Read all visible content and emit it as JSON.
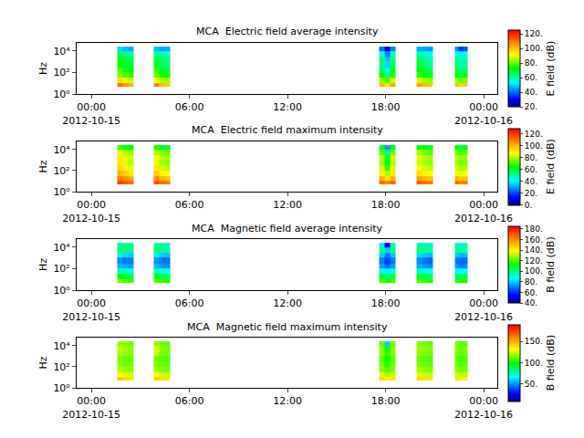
{
  "chart_data": [
    {
      "type": "heatmap",
      "title": "MCA  Electric field average intensity",
      "ylabel": "Hz",
      "colorbar_label": "E field (dB)",
      "log": "y",
      "xlim": [
        "2012-10-14 23:06",
        "2012-10-16 00:50"
      ],
      "xticks": [
        {
          "value": "2012-10-15 00:00",
          "label": "00:00\n2012-10-15"
        },
        {
          "value": "2012-10-15 06:00",
          "label": "06:00"
        },
        {
          "value": "2012-10-15 12:00",
          "label": "12:00"
        },
        {
          "value": "2012-10-15 18:00",
          "label": "18:00"
        },
        {
          "value": "2012-10-16 00:00",
          "label": "00:00\n2012-10-16"
        }
      ],
      "ylim": [
        1,
        56234
      ],
      "yticks": [
        {
          "value": 1,
          "label": "10⁰"
        },
        {
          "value": 100,
          "label": "10²"
        },
        {
          "value": 10000,
          "label": "10⁴"
        }
      ],
      "colorbar_range": [
        20,
        125
      ],
      "colorbar_ticks": [
        {
          "value": 20,
          "label": "20."
        },
        {
          "value": 40,
          "label": "40."
        },
        {
          "value": 60,
          "label": "60."
        },
        {
          "value": 80,
          "label": "80."
        },
        {
          "value": 100,
          "label": "100."
        },
        {
          "value": 120,
          "label": "120."
        }
      ],
      "x_edges": [
        "2012-10-15 01:35",
        "2012-10-15 01:55",
        "2012-10-15 02:15",
        "2012-10-15 02:35",
        "2012-10-15 03:48",
        "2012-10-15 04:08",
        "2012-10-15 04:28",
        "2012-10-15 04:48",
        "2012-10-15 17:36",
        "2012-10-15 17:56",
        "2012-10-15 18:16",
        "2012-10-15 18:36",
        "2012-10-15 19:53",
        "2012-10-15 20:13",
        "2012-10-15 20:33",
        "2012-10-15 20:53",
        "2012-10-15 22:13",
        "2012-10-15 22:29",
        "2012-10-15 22:45",
        "2012-10-15 23:01"
      ],
      "y_edges": [
        5,
        10,
        30,
        100,
        300,
        1000,
        3000,
        10000,
        25000
      ],
      "cells": [
        [
          110,
          105,
          100,
          null,
          108,
          100,
          98,
          null,
          100,
          95,
          102,
          null,
          104,
          100,
          98,
          null,
          100,
          96,
          98
        ],
        [
          95,
          90,
          88,
          null,
          92,
          85,
          84,
          null,
          85,
          78,
          88,
          null,
          88,
          84,
          82,
          null,
          84,
          80,
          82
        ],
        [
          82,
          78,
          76,
          null,
          80,
          74,
          72,
          null,
          72,
          62,
          75,
          null,
          75,
          72,
          70,
          null,
          72,
          68,
          70
        ],
        [
          78,
          74,
          72,
          null,
          76,
          70,
          68,
          null,
          66,
          55,
          70,
          null,
          72,
          68,
          66,
          null,
          68,
          64,
          66
        ],
        [
          72,
          70,
          68,
          null,
          70,
          66,
          64,
          null,
          62,
          50,
          66,
          null,
          68,
          64,
          62,
          null,
          64,
          60,
          62
        ],
        [
          72,
          68,
          66,
          null,
          68,
          65,
          62,
          null,
          64,
          48,
          64,
          null,
          66,
          62,
          60,
          null,
          62,
          58,
          60
        ],
        [
          66,
          64,
          60,
          null,
          62,
          60,
          58,
          null,
          55,
          42,
          58,
          null,
          60,
          56,
          55,
          null,
          56,
          52,
          54
        ],
        [
          50,
          48,
          46,
          null,
          48,
          46,
          45,
          null,
          40,
          28,
          42,
          null,
          46,
          45,
          44,
          null,
          44,
          35,
          38
        ]
      ]
    },
    {
      "type": "heatmap",
      "title": "MCA  Electric field maximum intensity",
      "ylabel": "Hz",
      "colorbar_label": "E field (dB)",
      "log": "y",
      "xlim": [
        "2012-10-14 23:06",
        "2012-10-16 00:50"
      ],
      "xticks": [
        {
          "value": "2012-10-15 00:00",
          "label": "00:00\n2012-10-15"
        },
        {
          "value": "2012-10-15 06:00",
          "label": "06:00"
        },
        {
          "value": "2012-10-15 12:00",
          "label": "12:00"
        },
        {
          "value": "2012-10-15 18:00",
          "label": "18:00"
        },
        {
          "value": "2012-10-16 00:00",
          "label": "00:00\n2012-10-16"
        }
      ],
      "ylim": [
        1,
        56234
      ],
      "yticks": [
        {
          "value": 1,
          "label": "10⁰"
        },
        {
          "value": 100,
          "label": "10²"
        },
        {
          "value": 10000,
          "label": "10⁴"
        }
      ],
      "colorbar_range": [
        0,
        130
      ],
      "colorbar_ticks": [
        {
          "value": 0,
          "label": "0."
        },
        {
          "value": 20,
          "label": "20."
        },
        {
          "value": 40,
          "label": "40."
        },
        {
          "value": 60,
          "label": "60."
        },
        {
          "value": 80,
          "label": "80."
        },
        {
          "value": 100,
          "label": "100."
        },
        {
          "value": 120,
          "label": "120."
        }
      ],
      "x_edges": [
        "2012-10-15 01:35",
        "2012-10-15 01:55",
        "2012-10-15 02:15",
        "2012-10-15 02:35",
        "2012-10-15 03:48",
        "2012-10-15 04:08",
        "2012-10-15 04:28",
        "2012-10-15 04:48",
        "2012-10-15 17:36",
        "2012-10-15 17:56",
        "2012-10-15 18:16",
        "2012-10-15 18:36",
        "2012-10-15 19:53",
        "2012-10-15 20:13",
        "2012-10-15 20:33",
        "2012-10-15 20:53",
        "2012-10-15 22:13",
        "2012-10-15 22:29",
        "2012-10-15 22:45",
        "2012-10-15 23:01"
      ],
      "y_edges": [
        5,
        10,
        30,
        100,
        300,
        1000,
        3000,
        10000,
        25000
      ],
      "cells": [
        [
          120,
          115,
          112,
          null,
          118,
          112,
          110,
          null,
          112,
          108,
          114,
          null,
          116,
          112,
          110,
          null,
          112,
          108,
          110
        ],
        [
          110,
          106,
          102,
          null,
          108,
          100,
          98,
          null,
          100,
          92,
          102,
          null,
          104,
          100,
          98,
          null,
          100,
          96,
          98
        ],
        [
          100,
          96,
          92,
          null,
          98,
          90,
          88,
          null,
          90,
          80,
          92,
          null,
          94,
          90,
          88,
          null,
          90,
          86,
          88
        ],
        [
          95,
          90,
          86,
          null,
          92,
          84,
          82,
          null,
          84,
          70,
          86,
          null,
          88,
          84,
          82,
          null,
          84,
          80,
          82
        ],
        [
          92,
          86,
          82,
          null,
          88,
          80,
          78,
          null,
          80,
          62,
          82,
          null,
          84,
          80,
          78,
          null,
          80,
          76,
          78
        ],
        [
          92,
          86,
          84,
          null,
          88,
          82,
          80,
          null,
          82,
          60,
          84,
          null,
          86,
          82,
          80,
          null,
          82,
          78,
          80
        ],
        [
          86,
          82,
          78,
          null,
          82,
          76,
          74,
          null,
          74,
          52,
          76,
          null,
          80,
          76,
          74,
          null,
          76,
          72,
          74
        ],
        [
          70,
          66,
          64,
          null,
          68,
          64,
          62,
          null,
          60,
          30,
          62,
          null,
          66,
          64,
          62,
          null,
          64,
          60,
          62
        ]
      ]
    },
    {
      "type": "heatmap",
      "title": "MCA  Magnetic field average intensity",
      "ylabel": "Hz",
      "colorbar_label": "B field (dB)",
      "log": "y",
      "xlim": [
        "2012-10-14 23:06",
        "2012-10-16 00:50"
      ],
      "xticks": [
        {
          "value": "2012-10-15 00:00",
          "label": "00:00\n2012-10-15"
        },
        {
          "value": "2012-10-15 06:00",
          "label": "06:00"
        },
        {
          "value": "2012-10-15 12:00",
          "label": "12:00"
        },
        {
          "value": "2012-10-15 18:00",
          "label": "18:00"
        },
        {
          "value": "2012-10-16 00:00",
          "label": "00:00\n2012-10-16"
        }
      ],
      "ylim": [
        1,
        56234
      ],
      "yticks": [
        {
          "value": 1,
          "label": "10⁰"
        },
        {
          "value": 100,
          "label": "10²"
        },
        {
          "value": 10000,
          "label": "10⁴"
        }
      ],
      "colorbar_range": [
        40,
        185
      ],
      "colorbar_ticks": [
        {
          "value": 40,
          "label": "40."
        },
        {
          "value": 60,
          "label": "60."
        },
        {
          "value": 80,
          "label": "80."
        },
        {
          "value": 100,
          "label": "100."
        },
        {
          "value": 120,
          "label": "120."
        },
        {
          "value": 140,
          "label": "140."
        },
        {
          "value": 160,
          "label": "160."
        },
        {
          "value": 180,
          "label": "180."
        }
      ],
      "x_edges": [
        "2012-10-15 01:35",
        "2012-10-15 01:55",
        "2012-10-15 02:15",
        "2012-10-15 02:35",
        "2012-10-15 03:48",
        "2012-10-15 04:08",
        "2012-10-15 04:28",
        "2012-10-15 04:48",
        "2012-10-15 17:36",
        "2012-10-15 17:56",
        "2012-10-15 18:16",
        "2012-10-15 18:36",
        "2012-10-15 19:53",
        "2012-10-15 20:13",
        "2012-10-15 20:33",
        "2012-10-15 20:53",
        "2012-10-15 22:13",
        "2012-10-15 22:29",
        "2012-10-15 22:45",
        "2012-10-15 23:01"
      ],
      "y_edges": [
        5,
        10,
        30,
        100,
        300,
        1000,
        3000,
        10000,
        25000
      ],
      "cells": [
        [
          125,
          120,
          118,
          null,
          122,
          118,
          116,
          null,
          120,
          115,
          118,
          null,
          120,
          118,
          116,
          null,
          118,
          115,
          116
        ],
        [
          112,
          108,
          106,
          null,
          110,
          106,
          104,
          null,
          108,
          100,
          106,
          null,
          108,
          106,
          104,
          null,
          106,
          102,
          104
        ],
        [
          95,
          92,
          90,
          null,
          94,
          90,
          88,
          null,
          92,
          85,
          90,
          null,
          92,
          90,
          88,
          null,
          90,
          86,
          88
        ],
        [
          78,
          76,
          74,
          null,
          78,
          74,
          72,
          null,
          75,
          68,
          74,
          null,
          76,
          74,
          72,
          null,
          74,
          70,
          72
        ],
        [
          72,
          70,
          70,
          null,
          72,
          70,
          68,
          null,
          70,
          62,
          70,
          null,
          72,
          70,
          68,
          null,
          70,
          68,
          68
        ],
        [
          85,
          82,
          80,
          null,
          84,
          80,
          78,
          null,
          80,
          70,
          80,
          null,
          82,
          80,
          78,
          null,
          80,
          76,
          78
        ],
        [
          102,
          100,
          98,
          null,
          102,
          98,
          96,
          null,
          98,
          80,
          98,
          null,
          100,
          98,
          96,
          null,
          98,
          95,
          96
        ],
        [
          98,
          96,
          95,
          null,
          98,
          95,
          94,
          null,
          92,
          55,
          94,
          null,
          96,
          95,
          94,
          null,
          95,
          92,
          94
        ]
      ]
    },
    {
      "type": "heatmap",
      "title": "MCA  Magnetic field maximum intensity",
      "ylabel": "Hz",
      "colorbar_label": "B field (dB)",
      "log": "y",
      "xlim": [
        "2012-10-14 23:06",
        "2012-10-16 00:50"
      ],
      "xticks": [
        {
          "value": "2012-10-15 00:00",
          "label": "00:00\n2012-10-15"
        },
        {
          "value": "2012-10-15 06:00",
          "label": "06:00"
        },
        {
          "value": "2012-10-15 12:00",
          "label": "12:00"
        },
        {
          "value": "2012-10-15 18:00",
          "label": "18:00"
        },
        {
          "value": "2012-10-16 00:00",
          "label": "00:00\n2012-10-16"
        }
      ],
      "ylim": [
        1,
        56234
      ],
      "yticks": [
        {
          "value": 1,
          "label": "10⁰"
        },
        {
          "value": 100,
          "label": "10²"
        },
        {
          "value": 10000,
          "label": "10⁴"
        }
      ],
      "colorbar_range": [
        10,
        190
      ],
      "colorbar_ticks": [
        {
          "value": 50,
          "label": "50."
        },
        {
          "value": 100,
          "label": "100."
        },
        {
          "value": 150,
          "label": "150."
        }
      ],
      "x_edges": [
        "2012-10-15 01:35",
        "2012-10-15 01:55",
        "2012-10-15 02:15",
        "2012-10-15 02:35",
        "2012-10-15 03:48",
        "2012-10-15 04:08",
        "2012-10-15 04:28",
        "2012-10-15 04:48",
        "2012-10-15 17:36",
        "2012-10-15 17:56",
        "2012-10-15 18:16",
        "2012-10-15 18:36",
        "2012-10-15 19:53",
        "2012-10-15 20:13",
        "2012-10-15 20:33",
        "2012-10-15 20:53",
        "2012-10-15 22:13",
        "2012-10-15 22:29",
        "2012-10-15 22:45",
        "2012-10-15 23:01"
      ],
      "y_edges": [
        5,
        10,
        30,
        100,
        300,
        1000,
        3000,
        10000,
        25000
      ],
      "cells": [
        [
          145,
          140,
          138,
          null,
          142,
          138,
          136,
          null,
          140,
          135,
          138,
          null,
          140,
          138,
          136,
          null,
          138,
          135,
          136
        ],
        [
          132,
          128,
          126,
          null,
          130,
          126,
          124,
          null,
          128,
          120,
          126,
          null,
          128,
          126,
          124,
          null,
          126,
          122,
          124
        ],
        [
          122,
          120,
          118,
          null,
          120,
          118,
          116,
          null,
          118,
          110,
          118,
          null,
          120,
          118,
          116,
          null,
          118,
          115,
          116
        ],
        [
          118,
          115,
          114,
          null,
          116,
          114,
          112,
          null,
          114,
          105,
          114,
          null,
          116,
          114,
          112,
          null,
          114,
          110,
          112
        ],
        [
          116,
          114,
          112,
          null,
          114,
          112,
          110,
          null,
          112,
          100,
          112,
          null,
          114,
          112,
          110,
          null,
          112,
          108,
          110
        ],
        [
          122,
          118,
          116,
          null,
          125,
          116,
          114,
          null,
          118,
          105,
          116,
          null,
          118,
          116,
          114,
          null,
          116,
          112,
          114
        ],
        [
          124,
          120,
          118,
          null,
          128,
          118,
          116,
          null,
          118,
          100,
          118,
          null,
          120,
          118,
          116,
          null,
          118,
          114,
          116
        ],
        [
          118,
          116,
          114,
          null,
          118,
          114,
          112,
          null,
          112,
          60,
          114,
          null,
          116,
          114,
          112,
          null,
          114,
          110,
          112
        ]
      ]
    }
  ]
}
